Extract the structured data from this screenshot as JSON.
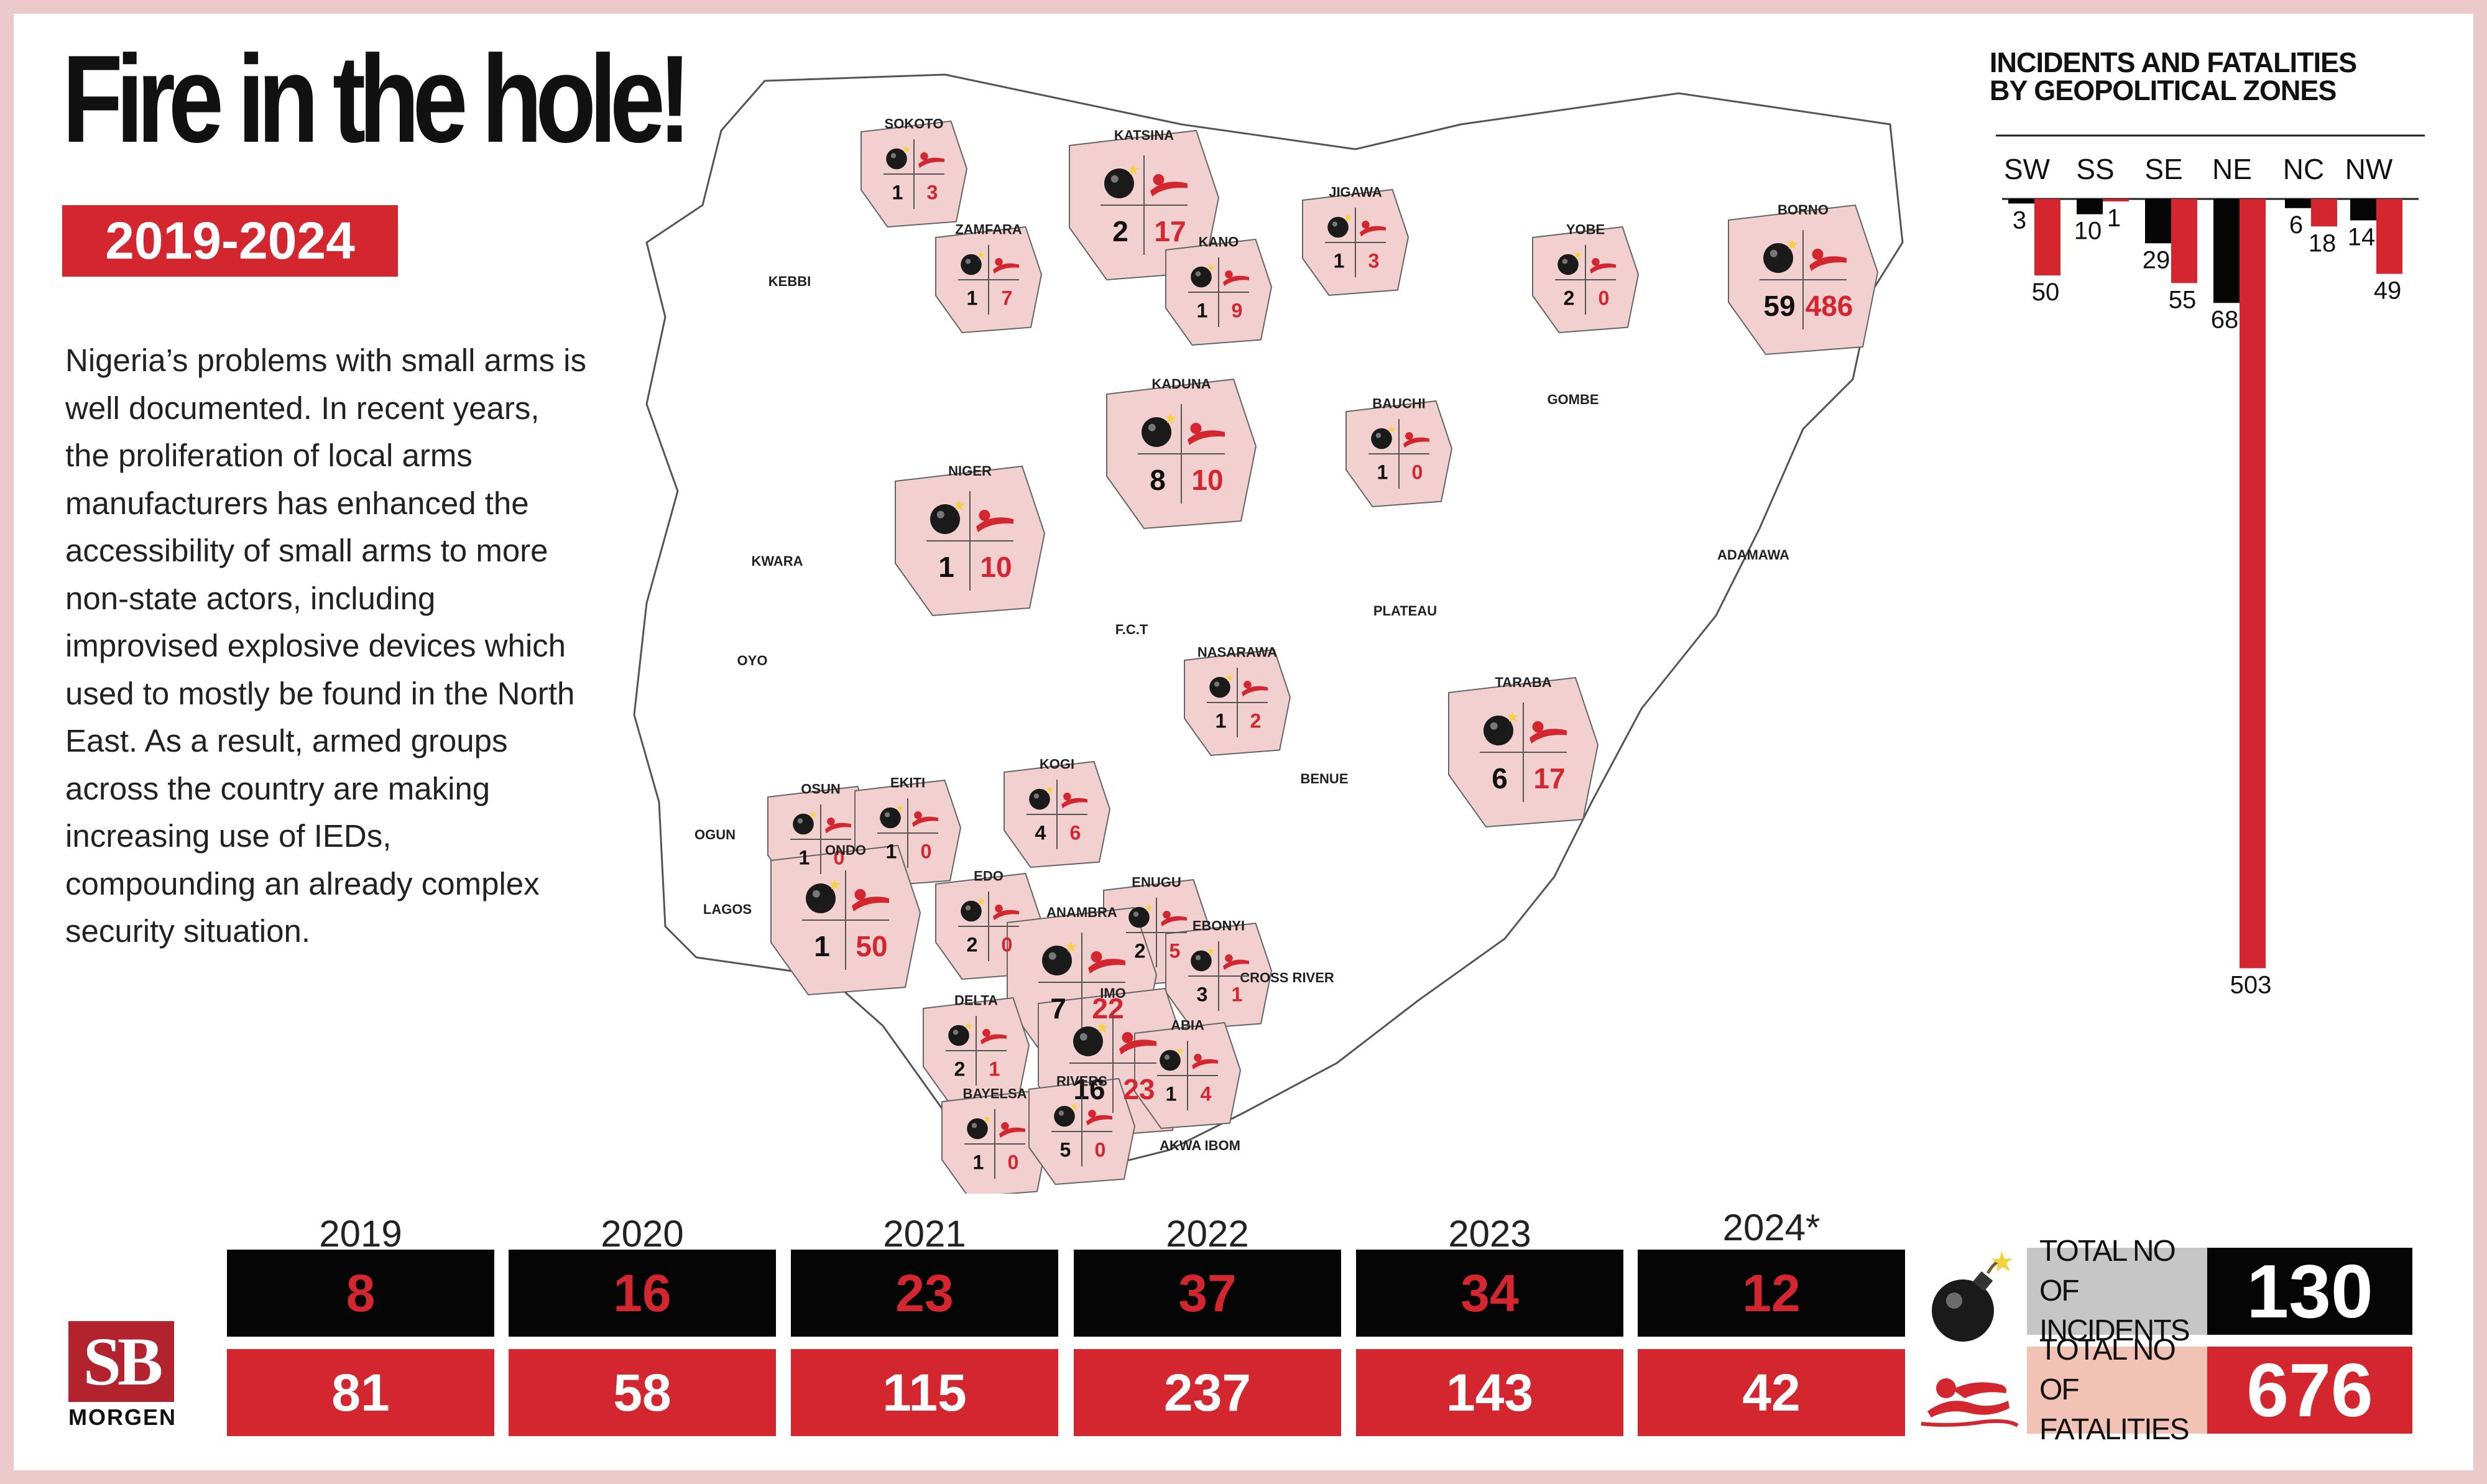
{
  "header": {
    "title": "Fire in the hole!",
    "years": "2019-2024"
  },
  "intro": "Nigeria’s problems with small arms is well documented. In recent years, the proliferation of local arms manufacturers has enhanced the accessibility of small arms to more non-state actors, including improvised explosive devices which used to mostly be found in the North East. As a result, armed groups across the country are making increasing use of IEDs, compounding an already complex security situation.",
  "colors": {
    "incidents": "#050505",
    "fatalities": "#d3262f",
    "affected_state": "#f2d0d0",
    "background": "#ecc9cb"
  },
  "map": {
    "affected_states": [
      {
        "name": "SOKOTO",
        "incidents": 1,
        "fatalities": 3
      },
      {
        "name": "ZAMFARA",
        "incidents": 1,
        "fatalities": 7
      },
      {
        "name": "KATSINA",
        "incidents": 2,
        "fatalities": 17
      },
      {
        "name": "KANO",
        "incidents": 1,
        "fatalities": 9
      },
      {
        "name": "JIGAWA",
        "incidents": 1,
        "fatalities": 3
      },
      {
        "name": "YOBE",
        "incidents": 2,
        "fatalities": 0
      },
      {
        "name": "BORNO",
        "incidents": 59,
        "fatalities": 486
      },
      {
        "name": "KADUNA",
        "incidents": 8,
        "fatalities": 10
      },
      {
        "name": "BAUCHI",
        "incidents": 1,
        "fatalities": 0
      },
      {
        "name": "NIGER",
        "incidents": 1,
        "fatalities": 10
      },
      {
        "name": "NASARAWA",
        "incidents": 1,
        "fatalities": 2
      },
      {
        "name": "TARABA",
        "incidents": 6,
        "fatalities": 17
      },
      {
        "name": "KOGI",
        "incidents": 4,
        "fatalities": 6
      },
      {
        "name": "OSUN",
        "incidents": 1,
        "fatalities": 0
      },
      {
        "name": "EKITI",
        "incidents": 1,
        "fatalities": 0
      },
      {
        "name": "ONDO",
        "incidents": 1,
        "fatalities": 50
      },
      {
        "name": "EDO",
        "incidents": 2,
        "fatalities": 0
      },
      {
        "name": "ENUGU",
        "incidents": 2,
        "fatalities": 5
      },
      {
        "name": "ANAMBRA",
        "incidents": 7,
        "fatalities": 22
      },
      {
        "name": "EBONYI",
        "incidents": 3,
        "fatalities": 1
      },
      {
        "name": "DELTA",
        "incidents": 2,
        "fatalities": 1
      },
      {
        "name": "IMO",
        "incidents": 16,
        "fatalities": 23
      },
      {
        "name": "ABIA",
        "incidents": 1,
        "fatalities": 4
      },
      {
        "name": "BAYELSA",
        "incidents": 1,
        "fatalities": 0
      },
      {
        "name": "RIVERS",
        "incidents": 5,
        "fatalities": 0
      }
    ],
    "other_states": [
      "KEBBI",
      "GOMBE",
      "ADAMAWA",
      "KWARA",
      "PLATEAU",
      "F.C.T",
      "OYO",
      "BENUE",
      "OGUN",
      "LAGOS",
      "CROSS RIVER",
      "AKWA IBOM"
    ]
  },
  "zones_title": [
    "INCIDENTS AND FATALITIES",
    "BY GEOPOLITICAL ZONES"
  ],
  "chart_data": [
    {
      "type": "bar",
      "title": "INCIDENTS AND FATALITIES BY GEOPOLITICAL ZONES",
      "categories": [
        "SW",
        "SS",
        "SE",
        "NE",
        "NC",
        "NW"
      ],
      "series": [
        {
          "name": "Incidents",
          "values": [
            3,
            10,
            29,
            68,
            6,
            14
          ]
        },
        {
          "name": "Fatalities",
          "values": [
            50,
            1,
            55,
            503,
            18,
            49
          ]
        }
      ],
      "orientation": "downward"
    },
    {
      "type": "table",
      "categories": [
        "2019",
        "2020",
        "2021",
        "2022",
        "2023",
        "2024*"
      ],
      "series": [
        {
          "name": "TOTAL NO OF INCIDENTS",
          "values": [
            8,
            16,
            23,
            37,
            34,
            12
          ]
        },
        {
          "name": "TOTAL NO OF FATALITIES",
          "values": [
            81,
            58,
            115,
            237,
            143,
            42
          ]
        }
      ]
    }
  ],
  "totals": {
    "incidents_label": [
      "TOTAL NO OF",
      "INCIDENTS"
    ],
    "incidents_value": "130",
    "fatalities_label": [
      "TOTAL NO OF",
      "FATALITIES"
    ],
    "fatalities_value": "676"
  },
  "logo": {
    "mark": "SB",
    "name": "MORGEN"
  }
}
